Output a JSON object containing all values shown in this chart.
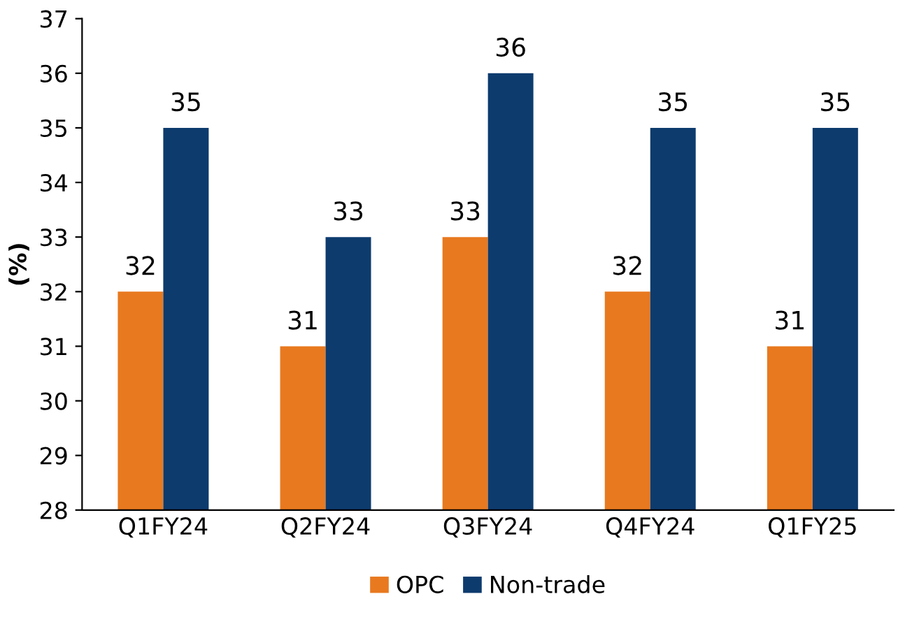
{
  "chart_data": {
    "type": "bar",
    "ylabel": "(%)",
    "categories": [
      "Q1FY24",
      "Q2FY24",
      "Q3FY24",
      "Q4FY24",
      "Q1FY25"
    ],
    "series": [
      {
        "name": "OPC",
        "color": "#e8791f",
        "values": [
          32,
          31,
          33,
          32,
          31
        ]
      },
      {
        "name": "Non-trade",
        "color": "#0d3b6e",
        "values": [
          35,
          33,
          36,
          35,
          35
        ]
      }
    ],
    "ylim": [
      28,
      37
    ],
    "yticks": [
      28,
      29,
      30,
      31,
      32,
      33,
      34,
      35,
      36,
      37
    ],
    "data_labels": true,
    "legend": "bottom",
    "grid": false
  }
}
